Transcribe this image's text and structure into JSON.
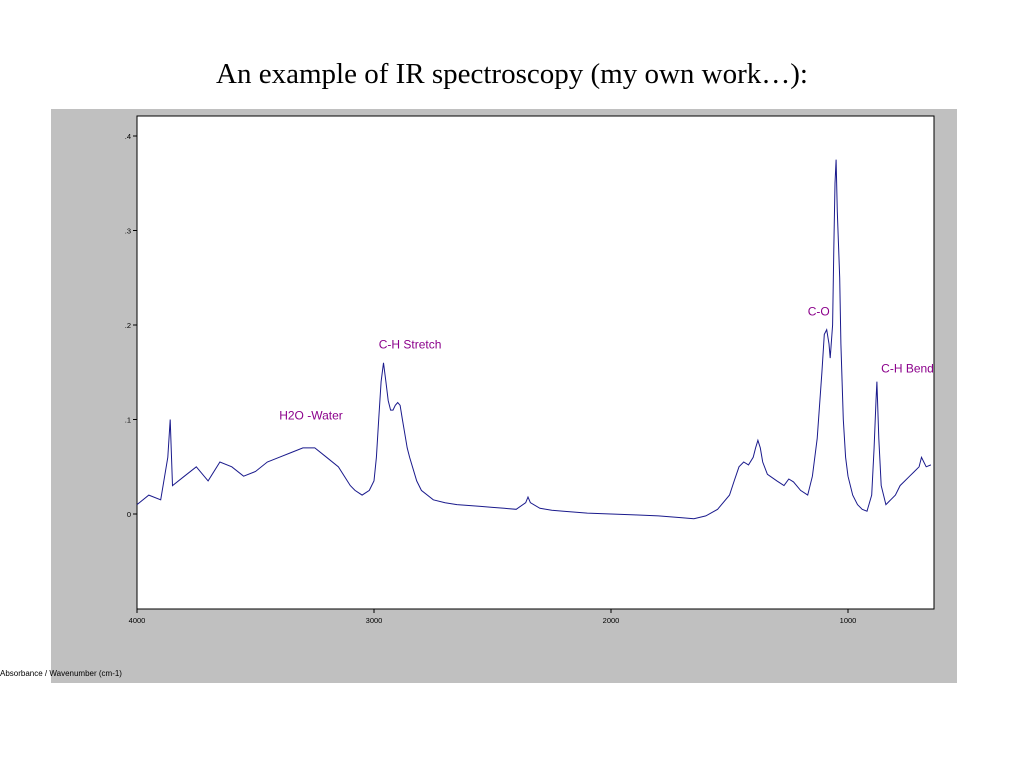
{
  "slide": {
    "title": "An example of IR spectroscopy (my own work…):"
  },
  "chart_data": {
    "type": "line",
    "xlabel": "Absorbance / Wavenumber (cm-1)",
    "ylabel": "",
    "xlim": [
      4000,
      650
    ],
    "ylim": [
      -0.1,
      0.4
    ],
    "x_reversed": true,
    "x_ticks": [
      4000,
      3000,
      2000,
      1000
    ],
    "x_tick_labels": [
      "4000",
      "3000",
      "2000",
      "1000"
    ],
    "y_ticks": [
      0,
      0.1,
      0.2,
      0.3,
      0.4
    ],
    "y_tick_labels": [
      "0",
      ".1",
      ".2",
      ".3",
      ".4"
    ],
    "grid": false,
    "legend": "none",
    "line_color": "#1a1a8c",
    "annotation_color": "#8b008b",
    "series": [
      {
        "x": [
          4000,
          3950,
          3900,
          3870,
          3860,
          3850,
          3800,
          3750,
          3700,
          3650,
          3600,
          3550,
          3500,
          3450,
          3400,
          3350,
          3300,
          3250,
          3200,
          3150,
          3100,
          3080,
          3050,
          3020,
          3000,
          2990,
          2980,
          2970,
          2960,
          2950,
          2940,
          2930,
          2920,
          2910,
          2900,
          2890,
          2880,
          2870,
          2860,
          2850,
          2820,
          2800,
          2750,
          2700,
          2650,
          2600,
          2550,
          2500,
          2450,
          2400,
          2360,
          2350,
          2340,
          2300,
          2250,
          2200,
          2100,
          2000,
          1900,
          1800,
          1700,
          1650,
          1600,
          1550,
          1500,
          1480,
          1460,
          1440,
          1420,
          1400,
          1390,
          1380,
          1370,
          1360,
          1340,
          1300,
          1270,
          1250,
          1230,
          1200,
          1170,
          1150,
          1130,
          1110,
          1100,
          1090,
          1080,
          1075,
          1065,
          1060,
          1055,
          1050,
          1045,
          1040,
          1035,
          1030,
          1020,
          1010,
          1000,
          980,
          960,
          940,
          920,
          900,
          890,
          882,
          878,
          870,
          860,
          840,
          820,
          800,
          780,
          760,
          740,
          720,
          700,
          690,
          680,
          670,
          650
        ],
        "y": [
          0.01,
          0.02,
          0.015,
          0.06,
          0.1,
          0.03,
          0.04,
          0.05,
          0.035,
          0.055,
          0.05,
          0.04,
          0.045,
          0.055,
          0.06,
          0.065,
          0.07,
          0.07,
          0.06,
          0.05,
          0.03,
          0.025,
          0.02,
          0.025,
          0.035,
          0.06,
          0.1,
          0.14,
          0.16,
          0.14,
          0.12,
          0.11,
          0.11,
          0.115,
          0.118,
          0.115,
          0.1,
          0.085,
          0.07,
          0.06,
          0.035,
          0.025,
          0.015,
          0.012,
          0.01,
          0.009,
          0.008,
          0.007,
          0.006,
          0.005,
          0.012,
          0.018,
          0.012,
          0.006,
          0.004,
          0.003,
          0.001,
          0.0,
          -0.001,
          -0.002,
          -0.004,
          -0.005,
          -0.002,
          0.005,
          0.02,
          0.035,
          0.05,
          0.055,
          0.052,
          0.06,
          0.07,
          0.078,
          0.07,
          0.055,
          0.042,
          0.035,
          0.03,
          0.037,
          0.034,
          0.025,
          0.02,
          0.04,
          0.08,
          0.15,
          0.19,
          0.195,
          0.18,
          0.165,
          0.2,
          0.28,
          0.35,
          0.375,
          0.32,
          0.285,
          0.25,
          0.18,
          0.1,
          0.06,
          0.04,
          0.02,
          0.01,
          0.005,
          0.003,
          0.02,
          0.07,
          0.12,
          0.14,
          0.08,
          0.03,
          0.01,
          0.015,
          0.02,
          0.03,
          0.035,
          0.04,
          0.045,
          0.05,
          0.06,
          0.055,
          0.05,
          0.052
        ]
      }
    ],
    "annotations": [
      {
        "text": "H2O -Water",
        "x": 3400,
        "y": 0.1
      },
      {
        "text": "C-H Stretch",
        "x": 2980,
        "y": 0.175
      },
      {
        "text": "C-O",
        "x": 1170,
        "y": 0.21
      },
      {
        "text": "C-H Bend",
        "x": 860,
        "y": 0.15
      }
    ]
  }
}
